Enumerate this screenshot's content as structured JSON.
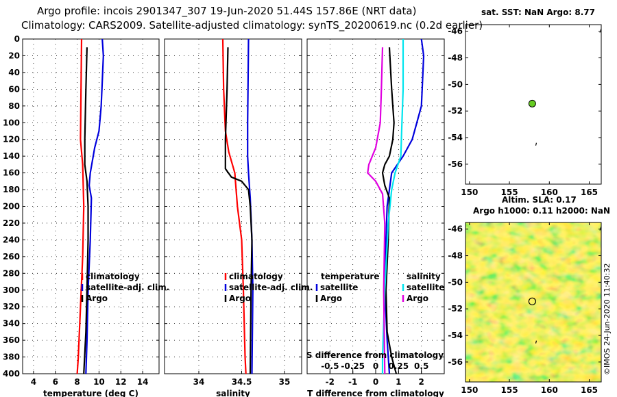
{
  "header": {
    "line1": "Argo profile: incois 2901347_307 19-Jun-2020 51.44S 157.86E (NRT data)",
    "line2": "Climatology: CARS2009. Satellite-adjusted climatology: synTS_20200619.nc (0.2d earlier)"
  },
  "map_top": {
    "title": "sat. SST: NaN Argo: 8.77"
  },
  "map_bottom": {
    "title1": "Altim. SLA: 0.17",
    "title2": "Argo h1000: 0.11 h2000: NaN"
  },
  "credit": "©IMOS 24-Jun-2020 11:40:32",
  "colors": {
    "red": "#ff0000",
    "blue": "#0000dd",
    "black": "#000000",
    "cyan": "#00e5ee",
    "magenta": "#e000e0",
    "dot": "#66cc22"
  },
  "chart_data": [
    {
      "type": "line",
      "title": "",
      "xlabel": "temperature (deg C)",
      "xlim": [
        3,
        15.5
      ],
      "ylim": [
        0,
        400
      ],
      "y_inverted": true,
      "xticks": [
        "4",
        "6",
        "8",
        "10",
        "12",
        "14"
      ],
      "yticks": [
        "0",
        "20",
        "40",
        "60",
        "80",
        "100",
        "120",
        "140",
        "160",
        "180",
        "200",
        "220",
        "240",
        "260",
        "280",
        "300",
        "320",
        "340",
        "360",
        "380",
        "400"
      ],
      "legend": [
        "climatology",
        "satellite-adj. clim.",
        "Argo"
      ],
      "series": [
        {
          "name": "climatology",
          "color": "red",
          "points": [
            [
              8.4,
              0
            ],
            [
              8.35,
              60
            ],
            [
              8.3,
              120
            ],
            [
              8.5,
              150
            ],
            [
              8.6,
              200
            ],
            [
              8.5,
              260
            ],
            [
              8.3,
              320
            ],
            [
              8.1,
              380
            ],
            [
              8.0,
              400
            ]
          ]
        },
        {
          "name": "satellite-adj. clim.",
          "color": "blue",
          "points": [
            [
              10.3,
              0
            ],
            [
              10.4,
              20
            ],
            [
              10.2,
              80
            ],
            [
              10.0,
              110
            ],
            [
              9.6,
              130
            ],
            [
              9.2,
              160
            ],
            [
              9.1,
              175
            ],
            [
              9.3,
              190
            ],
            [
              9.2,
              240
            ],
            [
              9.0,
              300
            ],
            [
              8.9,
              360
            ],
            [
              8.8,
              400
            ]
          ]
        },
        {
          "name": "Argo",
          "color": "black",
          "points": [
            [
              8.9,
              10
            ],
            [
              8.8,
              60
            ],
            [
              8.7,
              120
            ],
            [
              8.7,
              150
            ],
            [
              8.9,
              170
            ],
            [
              9.0,
              200
            ],
            [
              9.0,
              240
            ],
            [
              8.9,
              300
            ],
            [
              8.8,
              350
            ],
            [
              8.6,
              400
            ]
          ]
        }
      ]
    },
    {
      "type": "line",
      "title": "",
      "xlabel": "salinity",
      "xlim": [
        33.6,
        35.2
      ],
      "ylim": [
        0,
        400
      ],
      "y_inverted": true,
      "xticks": [
        "34",
        "34.5",
        "35"
      ],
      "legend": [
        "climatology",
        "satellite-adj. clim.",
        "Argo"
      ],
      "series": [
        {
          "name": "climatology",
          "color": "red",
          "points": [
            [
              34.28,
              0
            ],
            [
              34.29,
              60
            ],
            [
              34.31,
              110
            ],
            [
              34.35,
              135
            ],
            [
              34.42,
              160
            ],
            [
              34.45,
              200
            ],
            [
              34.5,
              240
            ],
            [
              34.52,
              300
            ],
            [
              34.54,
              380
            ],
            [
              34.55,
              400
            ]
          ]
        },
        {
          "name": "satellite-adj. clim.",
          "color": "blue",
          "points": [
            [
              34.58,
              0
            ],
            [
              34.57,
              100
            ],
            [
              34.57,
              140
            ],
            [
              34.58,
              160
            ],
            [
              34.6,
              190
            ],
            [
              34.62,
              240
            ],
            [
              34.63,
              300
            ],
            [
              34.62,
              400
            ]
          ]
        },
        {
          "name": "Argo",
          "color": "black",
          "points": [
            [
              34.34,
              10
            ],
            [
              34.33,
              60
            ],
            [
              34.31,
              120
            ],
            [
              34.31,
              155
            ],
            [
              34.38,
              165
            ],
            [
              34.5,
              170
            ],
            [
              34.58,
              180
            ],
            [
              34.6,
              200
            ],
            [
              34.62,
              240
            ],
            [
              34.61,
              300
            ],
            [
              34.6,
              400
            ]
          ]
        }
      ]
    },
    {
      "type": "line",
      "title": "",
      "xlabel": "T difference from climatology",
      "xlabel2": "S difference from climatology",
      "xlim": [
        -3,
        3
      ],
      "ylim": [
        0,
        400
      ],
      "y_inverted": true,
      "xticks": [
        "-2",
        "-1",
        "0",
        "1",
        "2"
      ],
      "xticks2": [
        "-0.5",
        "-0.25",
        "0",
        "0.25",
        "0.5"
      ],
      "legend_temperature": {
        "title": "temperature",
        "items": [
          "satellite",
          "Argo"
        ]
      },
      "legend_salinity": {
        "title": "salinity",
        "items": [
          "satellite",
          "Argo"
        ]
      },
      "series": [
        {
          "name": "T satellite",
          "color": "blue",
          "points": [
            [
              2.0,
              0
            ],
            [
              2.1,
              20
            ],
            [
              2.0,
              80
            ],
            [
              1.8,
              100
            ],
            [
              1.6,
              120
            ],
            [
              1.2,
              140
            ],
            [
              0.7,
              160
            ],
            [
              0.6,
              180
            ],
            [
              0.5,
              200
            ],
            [
              0.45,
              240
            ],
            [
              0.4,
              300
            ],
            [
              0.5,
              360
            ],
            [
              0.6,
              400
            ]
          ]
        },
        {
          "name": "T Argo",
          "color": "black",
          "points": [
            [
              0.6,
              10
            ],
            [
              0.7,
              60
            ],
            [
              0.8,
              100
            ],
            [
              0.75,
              120
            ],
            [
              0.6,
              140
            ],
            [
              0.4,
              150
            ],
            [
              0.3,
              160
            ],
            [
              0.4,
              175
            ],
            [
              0.6,
              190
            ],
            [
              0.55,
              240
            ],
            [
              0.45,
              300
            ],
            [
              0.5,
              350
            ],
            [
              0.7,
              380
            ],
            [
              0.9,
              400
            ]
          ]
        },
        {
          "name": "S satellite",
          "color": "cyan",
          "points": [
            [
              1.2,
              0
            ],
            [
              1.2,
              60
            ],
            [
              1.15,
              100
            ],
            [
              1.1,
              140
            ],
            [
              0.85,
              160
            ],
            [
              0.7,
              180
            ],
            [
              0.55,
              220
            ],
            [
              0.4,
              300
            ],
            [
              0.3,
              380
            ],
            [
              0.3,
              400
            ]
          ]
        },
        {
          "name": "S Argo",
          "color": "magenta",
          "points": [
            [
              0.3,
              10
            ],
            [
              0.25,
              60
            ],
            [
              0.2,
              100
            ],
            [
              0.0,
              130
            ],
            [
              -0.3,
              150
            ],
            [
              -0.35,
              160
            ],
            [
              0.0,
              170
            ],
            [
              0.3,
              185
            ],
            [
              0.4,
              220
            ],
            [
              0.35,
              300
            ],
            [
              0.4,
              400
            ]
          ]
        }
      ]
    },
    {
      "type": "scatter",
      "title": "sat. SST: NaN Argo: 8.77",
      "xlim": [
        149.5,
        166.5
      ],
      "ylim": [
        -57.5,
        -45.5
      ],
      "xticks": [
        "150",
        "155",
        "160",
        "165"
      ],
      "yticks": [
        "-46",
        "-48",
        "-50",
        "-52",
        "-54",
        "-56"
      ],
      "points": [
        {
          "lon": 157.86,
          "lat": -51.44
        }
      ]
    },
    {
      "type": "heatmap",
      "title": "Altim. SLA: 0.17",
      "xlim": [
        149.5,
        166.5
      ],
      "ylim": [
        -57.5,
        -45.5
      ],
      "xticks": [
        "150",
        "155",
        "160",
        "165"
      ],
      "yticks": [
        "-46",
        "-48",
        "-50",
        "-52",
        "-54",
        "-56"
      ],
      "points": [
        {
          "lon": 157.86,
          "lat": -51.44
        }
      ]
    }
  ]
}
